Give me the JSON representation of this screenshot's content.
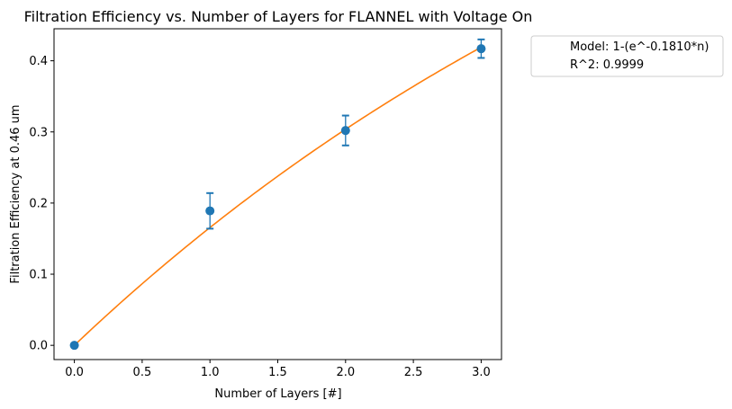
{
  "chart_data": {
    "type": "scatter",
    "title": "Filtration Efficiency vs. Number of Layers for FLANNEL with Voltage On",
    "xlabel": "Number of Layers [#]",
    "ylabel": "Filtration Efficiency at 0.46 um",
    "xlim": [
      -0.15,
      3.15
    ],
    "ylim": [
      -0.02,
      0.445
    ],
    "xticks": [
      "0.0",
      "0.5",
      "1.0",
      "1.5",
      "2.0",
      "2.5",
      "3.0"
    ],
    "yticks": [
      "0.0",
      "0.1",
      "0.2",
      "0.3",
      "0.4"
    ],
    "grid": false,
    "legend_position": "outside-right-top",
    "series": [
      {
        "kind": "points-with-error",
        "color": "#1f77b4",
        "x": [
          0,
          1,
          2,
          3
        ],
        "y": [
          0.0,
          0.189,
          0.302,
          0.417
        ],
        "yerr": [
          0.0,
          0.025,
          0.021,
          0.013
        ]
      },
      {
        "kind": "model-curve",
        "color": "#ff7f0e",
        "rate": 0.181,
        "x_range": [
          0,
          3
        ]
      }
    ],
    "legend": [
      "Model: 1-(e^-0.1810*n)",
      "R^2: 0.9999"
    ]
  }
}
